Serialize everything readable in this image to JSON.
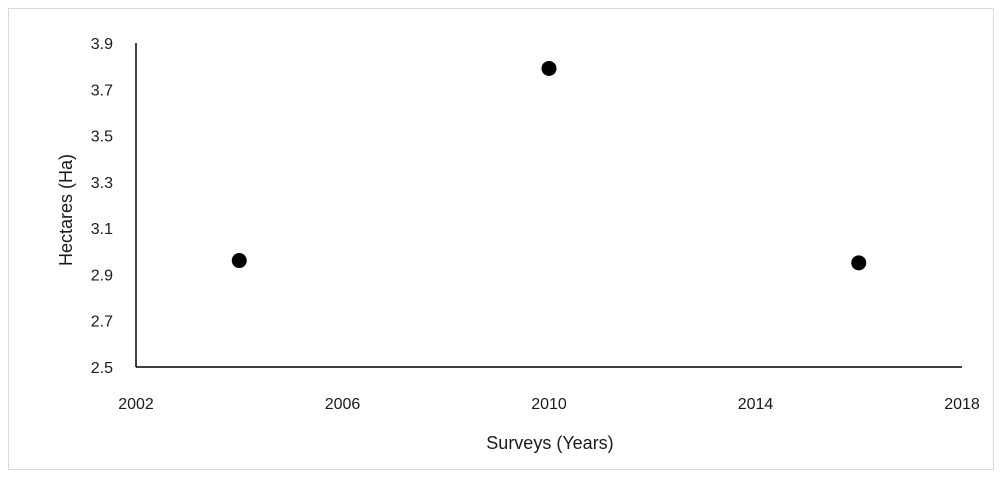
{
  "chart_data": {
    "type": "scatter",
    "title": "",
    "xlabel": "Surveys (Years)",
    "ylabel": "Hectares (Ha)",
    "xlim": [
      2002,
      2018
    ],
    "ylim": [
      2.5,
      3.9
    ],
    "xticks": [
      2002,
      2006,
      2010,
      2014,
      2018
    ],
    "yticks": [
      "2.5",
      "2.7",
      "2.9",
      "3.1",
      "3.3",
      "3.5",
      "3.7",
      "3.9"
    ],
    "grid": false,
    "legend": "none",
    "marker_color": "#000000",
    "series": [
      {
        "x": [
          2004,
          2010,
          2016
        ],
        "y": [
          2.96,
          3.79,
          2.95
        ]
      }
    ]
  }
}
